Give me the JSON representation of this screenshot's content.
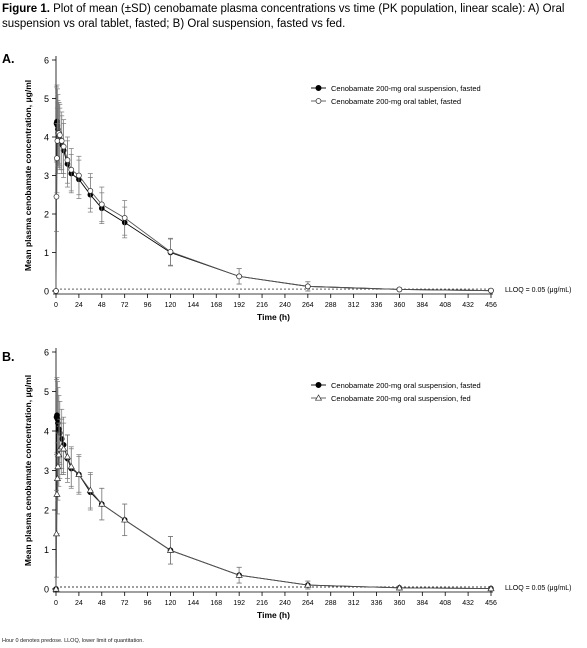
{
  "caption": {
    "label": "Figure 1.",
    "text": "Plot of mean (±SD) cenobamate plasma concentrations vs time (PK population, linear scale): A) Oral suspension vs oral tablet, fasted; B) Oral suspension, fasted vs fed."
  },
  "footnote": "Hour 0 denotes predose. LLOQ, lower limit of quantitation.",
  "chart_data": [
    {
      "panel": "A.",
      "type": "line",
      "ylabel": "Mean plasma cenobamate concentration, μg/ml",
      "xlabel": "Time (h)",
      "xlim": [
        0,
        456
      ],
      "ylim": [
        0,
        6
      ],
      "xticks": [
        0,
        24,
        48,
        72,
        96,
        120,
        144,
        168,
        192,
        216,
        240,
        264,
        288,
        312,
        336,
        360,
        384,
        408,
        432,
        456
      ],
      "yticks": [
        0,
        1,
        2,
        3,
        4,
        5,
        6
      ],
      "legend_position": "top-right",
      "reference_line": {
        "y": 0.05,
        "label": "LLOQ = 0.05 (μg/mL)"
      },
      "series": [
        {
          "name": "Cenobamate 200-mg oral suspension, fasted",
          "marker": "filled-circle",
          "x": [
            0,
            0.5,
            1,
            1.5,
            2,
            3,
            4,
            6,
            8,
            12,
            16,
            24,
            36,
            48,
            72,
            120,
            192,
            264,
            360,
            456
          ],
          "y": [
            0,
            4.35,
            4.4,
            4.3,
            4.2,
            4.05,
            3.95,
            3.8,
            3.65,
            3.3,
            3.05,
            2.9,
            2.5,
            2.15,
            1.78,
            1.0,
            0.38,
            0.12,
            0.04,
            0.01
          ],
          "sd": [
            0,
            0.95,
            0.95,
            0.95,
            0.9,
            0.85,
            0.8,
            0.75,
            0.7,
            0.6,
            0.5,
            0.5,
            0.45,
            0.4,
            0.4,
            0.35,
            0.2,
            0.12,
            0.04,
            0.02
          ]
        },
        {
          "name": "Cenobamate 200-mg oral tablet, fasted",
          "marker": "open-circle",
          "x": [
            0,
            0.5,
            1,
            1.5,
            2,
            3,
            4,
            6,
            8,
            12,
            16,
            24,
            36,
            48,
            72,
            120,
            192,
            264,
            360,
            456
          ],
          "y": [
            0,
            2.45,
            3.45,
            3.9,
            4.1,
            4.1,
            4.05,
            3.9,
            3.75,
            3.4,
            3.15,
            3.0,
            2.6,
            2.25,
            1.9,
            1.02,
            0.38,
            0.12,
            0.04,
            0.01
          ],
          "sd": [
            0,
            0.9,
            0.9,
            0.85,
            0.85,
            0.8,
            0.8,
            0.75,
            0.7,
            0.6,
            0.55,
            0.5,
            0.45,
            0.45,
            0.45,
            0.35,
            0.2,
            0.12,
            0.04,
            0.02
          ]
        }
      ]
    },
    {
      "panel": "B.",
      "type": "line",
      "ylabel": "Mean plasma cenobamate concentration, μg/ml",
      "xlabel": "Time (h)",
      "xlim": [
        0,
        456
      ],
      "ylim": [
        0,
        6
      ],
      "xticks": [
        0,
        24,
        48,
        72,
        96,
        120,
        144,
        168,
        192,
        216,
        240,
        264,
        288,
        312,
        336,
        360,
        384,
        408,
        432,
        456
      ],
      "yticks": [
        0,
        1,
        2,
        3,
        4,
        5,
        6
      ],
      "legend_position": "top-right",
      "reference_line": {
        "y": 0.05,
        "label": "LLOQ = 0.05 (μg/mL)"
      },
      "series": [
        {
          "name": "Cenobamate 200-mg oral suspension, fasted",
          "marker": "filled-circle",
          "x": [
            0,
            0.5,
            1,
            1.5,
            2,
            3,
            4,
            6,
            8,
            12,
            16,
            24,
            36,
            48,
            72,
            120,
            192,
            264,
            360,
            456
          ],
          "y": [
            0,
            4.35,
            4.4,
            4.3,
            4.2,
            4.05,
            3.95,
            3.8,
            3.65,
            3.3,
            3.05,
            2.9,
            2.45,
            2.15,
            1.75,
            0.98,
            0.35,
            0.1,
            0.03,
            0.01
          ],
          "sd": [
            0,
            0.95,
            0.95,
            0.95,
            0.9,
            0.85,
            0.8,
            0.75,
            0.7,
            0.6,
            0.5,
            0.5,
            0.45,
            0.4,
            0.4,
            0.35,
            0.2,
            0.1,
            0.03,
            0.02
          ]
        },
        {
          "name": "Cenobamate 200-mg oral suspension, fed",
          "marker": "open-triangle",
          "x": [
            0,
            0.5,
            1,
            1.5,
            2,
            3,
            4,
            6,
            8,
            12,
            16,
            24,
            36,
            48,
            72,
            120,
            192,
            264,
            360,
            456
          ],
          "y": [
            0,
            1.4,
            2.4,
            2.8,
            3.1,
            3.4,
            3.55,
            3.6,
            3.55,
            3.35,
            3.1,
            2.9,
            2.5,
            2.15,
            1.75,
            0.98,
            0.35,
            0.1,
            0.03,
            0.01
          ],
          "sd": [
            0,
            1.1,
            1.0,
            0.9,
            0.85,
            0.8,
            0.75,
            0.7,
            0.65,
            0.55,
            0.5,
            0.45,
            0.45,
            0.4,
            0.4,
            0.35,
            0.2,
            0.1,
            0.03,
            0.02
          ]
        }
      ]
    }
  ]
}
